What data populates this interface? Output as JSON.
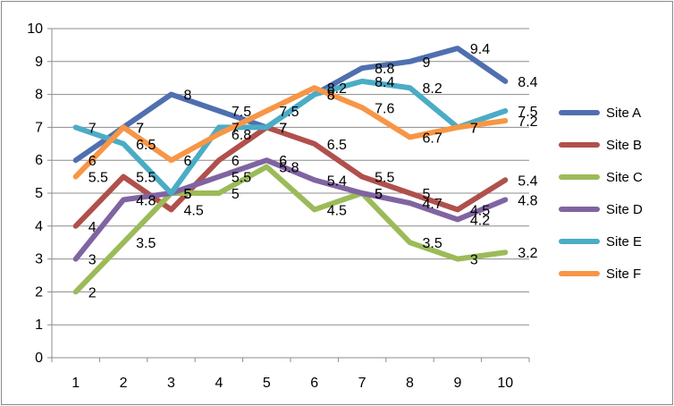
{
  "chart_data": {
    "type": "line",
    "title": "",
    "xlabel": "",
    "ylabel": "",
    "categories": [
      "1",
      "2",
      "3",
      "4",
      "5",
      "6",
      "7",
      "8",
      "9",
      "10"
    ],
    "ylim": [
      0,
      10
    ],
    "yticks": [
      "0",
      "1",
      "2",
      "3",
      "4",
      "5",
      "6",
      "7",
      "8",
      "9",
      "10"
    ],
    "grid": "horizontal",
    "legend_position": "right",
    "series": [
      {
        "name": "Site A",
        "color": "#4F6FB0",
        "values": [
          6,
          7,
          8,
          7.5,
          7,
          8,
          8.8,
          9,
          9.4,
          8.4
        ],
        "labels": [
          "6",
          "7",
          "8",
          "7.5",
          "7",
          "8",
          "8.8",
          "9",
          "9.4",
          "8.4"
        ]
      },
      {
        "name": "Site B",
        "color": "#B0504C",
        "values": [
          4,
          5.5,
          4.5,
          6,
          7,
          6.5,
          5.5,
          5,
          4.5,
          5.4
        ],
        "labels": [
          "4",
          "5.5",
          "4.5",
          "6",
          "7",
          "6.5",
          "5.5",
          "5",
          "4.5",
          "5.4"
        ]
      },
      {
        "name": "Site C",
        "color": "#9BBB59",
        "values": [
          2,
          3.5,
          5,
          5,
          5.8,
          4.5,
          5,
          3.5,
          3,
          3.2
        ],
        "labels": [
          "2",
          "3.5",
          "5",
          "5",
          "5.8",
          "4.5",
          "5",
          "3.5",
          "3",
          "3.2"
        ]
      },
      {
        "name": "Site D",
        "color": "#8064A2",
        "values": [
          3,
          4.8,
          5,
          5.5,
          6,
          5.4,
          5,
          4.7,
          4.2,
          4.8
        ],
        "labels": [
          "3",
          "4.8",
          "5",
          "5.5",
          "6",
          "5.4",
          "5",
          "4.7",
          "4.2",
          "4.8"
        ]
      },
      {
        "name": "Site E",
        "color": "#4BACC6",
        "values": [
          7,
          6.5,
          5,
          7,
          7,
          8,
          8.4,
          8.2,
          7,
          7.5
        ],
        "labels": [
          "7",
          "6.5",
          "5",
          "7",
          "7",
          "8",
          "8.4",
          "8.2",
          "7",
          "7.5"
        ]
      },
      {
        "name": "Site F",
        "color": "#F79646",
        "values": [
          5.5,
          7,
          6,
          6.8,
          7.5,
          8.2,
          7.6,
          6.7,
          7,
          7.2
        ],
        "labels": [
          "5.5",
          "7",
          "6",
          "6.8",
          "7.5",
          "8.2",
          "7.6",
          "6.7",
          "7",
          "7.2"
        ]
      }
    ]
  }
}
